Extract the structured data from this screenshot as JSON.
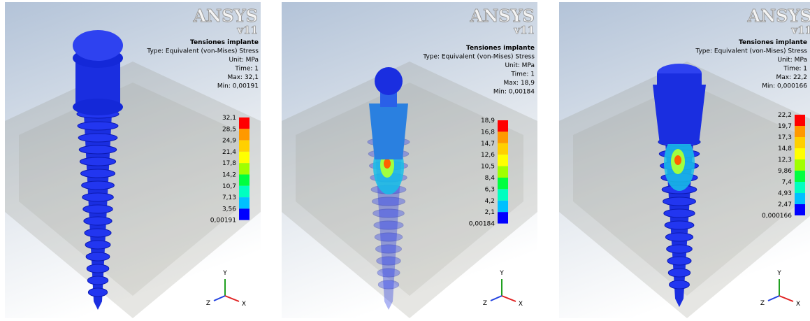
{
  "panels": [
    {
      "logo": "ANSYS",
      "version": "v11",
      "title": "Tensiones implante",
      "type": "Type: Equivalent (von-Mises) Stress",
      "unit": "Unit: MPa",
      "time": "Time: 1",
      "max": "Max: 32,1",
      "min": "Min: 0,00191",
      "legend": [
        "32,1",
        "28,5",
        "24,9",
        "21,4",
        "17,8",
        "14,2",
        "10,7",
        "7,13",
        "3,56",
        "0,00191"
      ],
      "axes": {
        "y": "Y",
        "z": "Z",
        "x": "X"
      }
    },
    {
      "logo": "ANSYS",
      "version": "v11",
      "title": "Tensiones implante",
      "type": "Type: Equivalent (von-Mises) Stress",
      "unit": "Unit: MPa",
      "time": "Time: 1",
      "max": "Max: 18,9",
      "min": "Min: 0,00184",
      "legend": [
        "18,9",
        "16,8",
        "14,7",
        "12,6",
        "10,5",
        "8,4",
        "6,3",
        "4,2",
        "2,1",
        "0,00184"
      ],
      "axes": {
        "y": "Y",
        "z": "Z",
        "x": "X"
      }
    },
    {
      "logo": "ANSYS",
      "version": "v11",
      "title": "Tensiones implante",
      "type": "Type: Equivalent (von-Mises) Stress",
      "unit": "Unit: MPa",
      "time": "Time: 1",
      "max": "Max: 22,2",
      "min": "Min: 0,000166",
      "legend": [
        "22,2",
        "19,7",
        "17,3",
        "14,8",
        "12,3",
        "9,86",
        "7,4",
        "4,93",
        "2,47",
        "0,000166"
      ],
      "axes": {
        "y": "Y",
        "z": "Z",
        "x": "X"
      }
    }
  ]
}
